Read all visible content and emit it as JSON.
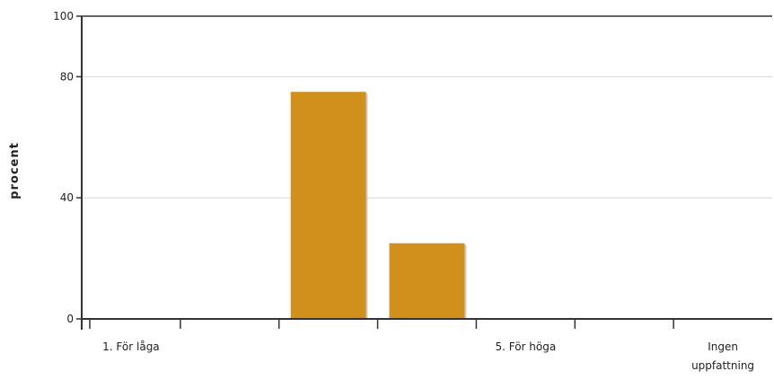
{
  "chart_data": {
    "type": "bar",
    "ylabel": "procent",
    "xlabel": "",
    "ylim": [
      0,
      100
    ],
    "yticks": [
      0,
      40,
      80,
      100
    ],
    "grid": true,
    "categories": [
      {
        "label_lines": [
          "1. För låga"
        ]
      },
      {
        "label_lines": []
      },
      {
        "label_lines": []
      },
      {
        "label_lines": []
      },
      {
        "label_lines": [
          "5. För höga"
        ]
      },
      {
        "label_lines": []
      },
      {
        "label_lines": [
          "Ingen",
          "uppfattning"
        ]
      }
    ],
    "series": [
      {
        "color": "#d0901b",
        "values": [
          0,
          0,
          75,
          25,
          0,
          0,
          0
        ]
      }
    ]
  }
}
